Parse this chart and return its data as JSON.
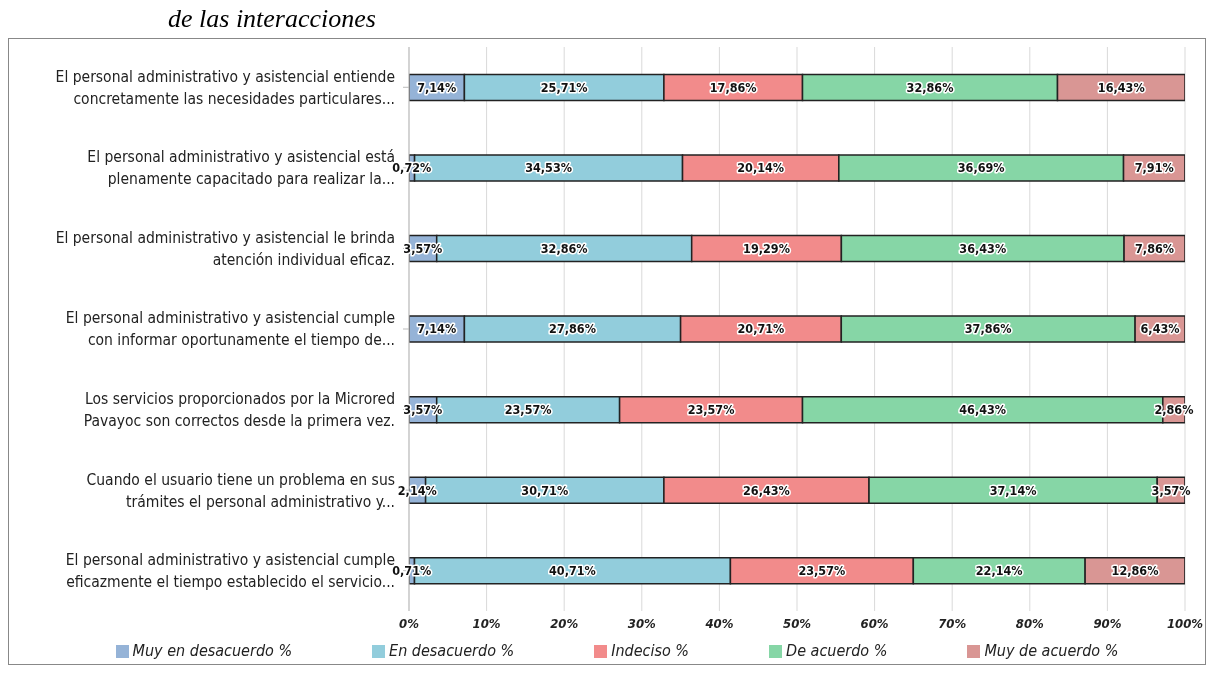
{
  "chart_data": {
    "type": "bar",
    "orientation": "horizontal",
    "stacked": true,
    "title": "de las interacciones",
    "categories": [
      "El personal administrativo y asistencial entiende concretamente las necesidades particulares...",
      "El personal administrativo y asistencial está plenamente capacitado para realizar la...",
      "El personal administrativo y asistencial le brinda atención individual eficaz.",
      "El personal administrativo y asistencial cumple con informar oportunamente el tiempo de...",
      "Los servicios proporcionados por la Microred Pavayoc son correctos desde la primera vez.",
      "Cuando el usuario tiene un problema en sus trámites el personal administrativo y...",
      "El personal administrativo y asistencial cumple eficazmente el tiempo establecido el servicio..."
    ],
    "series": [
      {
        "name": "Muy en desacuerdo %",
        "color": "#95b3d7",
        "values": [
          7.14,
          0.72,
          3.57,
          7.14,
          3.57,
          2.14,
          0.71
        ],
        "value_labels": [
          "7,14%",
          "0,72%",
          "3,57%",
          "7,14%",
          "3,57%",
          "2,14%",
          "0,71%"
        ]
      },
      {
        "name": "En desacuerdo %",
        "color": "#92cddc",
        "values": [
          25.71,
          34.53,
          32.86,
          27.86,
          23.57,
          30.71,
          40.71
        ],
        "value_labels": [
          "25,71%",
          "34,53%",
          "32,86%",
          "27,86%",
          "23,57%",
          "30,71%",
          "40,71%"
        ]
      },
      {
        "name": "Indeciso %",
        "color": "#f28b8b",
        "values": [
          17.86,
          20.14,
          19.29,
          20.71,
          23.57,
          26.43,
          23.57
        ],
        "value_labels": [
          "17,86%",
          "20,14%",
          "19,29%",
          "20,71%",
          "23,57%",
          "26,43%",
          "23,57%"
        ]
      },
      {
        "name": "De acuerdo %",
        "color": "#86d6a6",
        "values": [
          32.86,
          36.69,
          36.43,
          37.86,
          46.43,
          37.14,
          22.14
        ],
        "value_labels": [
          "32,86%",
          "36,69%",
          "36,43%",
          "37,86%",
          "46,43%",
          "37,14%",
          "22,14%"
        ]
      },
      {
        "name": "Muy de acuerdo %",
        "color": "#d99694",
        "values": [
          16.43,
          7.91,
          7.86,
          6.43,
          2.86,
          3.57,
          12.86
        ],
        "value_labels": [
          "16,43%",
          "7,91%",
          "7,86%",
          "6,43%",
          "2,86%",
          "3,57%",
          "12,86%"
        ]
      }
    ],
    "xlim": [
      0,
      100
    ],
    "xticks": [
      {
        "value": 0,
        "label": "0%"
      },
      {
        "value": 10,
        "label": "10%"
      },
      {
        "value": 20,
        "label": "20%"
      },
      {
        "value": 30,
        "label": "30%"
      },
      {
        "value": 40,
        "label": "40%"
      },
      {
        "value": 50,
        "label": "50%"
      },
      {
        "value": 60,
        "label": "60%"
      },
      {
        "value": 70,
        "label": "70%"
      },
      {
        "value": 80,
        "label": "80%"
      },
      {
        "value": 90,
        "label": "90%"
      },
      {
        "value": 100,
        "label": "100%"
      }
    ],
    "grid": "x",
    "legend": "bottom"
  }
}
